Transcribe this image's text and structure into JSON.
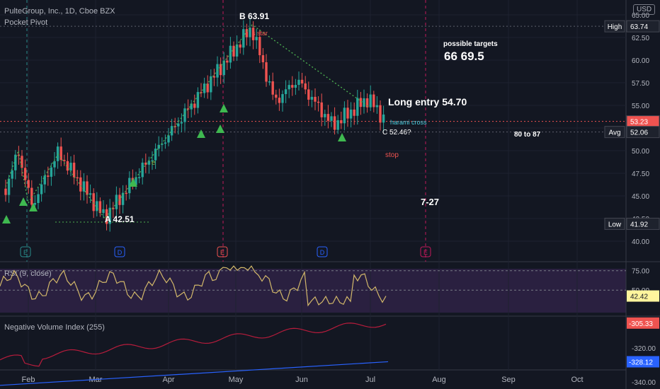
{
  "header": {
    "symbol_line": "PulteGroup, Inc., 1D, Cboe BZX",
    "indicator": "Pocket Pivot",
    "currency": "USD"
  },
  "price_axis": {
    "ticks": [
      "65.00",
      "62.50",
      "60.00",
      "57.50",
      "55.00",
      "52.50",
      "50.00",
      "47.50",
      "45.00",
      "42.50",
      "40.00"
    ],
    "tags": [
      {
        "label": "High",
        "value": "63.74",
        "color": "#1e222d"
      },
      {
        "label": "",
        "value": "53.23",
        "color": "#ef5350"
      },
      {
        "label": "Avg",
        "value": "52.06",
        "color": "#1e222d"
      },
      {
        "label": "Low",
        "value": "41.92",
        "color": "#1e222d"
      }
    ]
  },
  "time_axis": [
    "Feb",
    "Mar",
    "Apr",
    "May",
    "Jun",
    "Jul",
    "Aug",
    "Sep",
    "Oct"
  ],
  "annotations": {
    "point_b": "B  63.91",
    "point_a": "A 42.51",
    "point_c": "C 52.46?",
    "shooting_star": "s star",
    "targets_title": "possible targets",
    "targets_values": "66   69.5",
    "long_entry": "Long entry 54.70",
    "harami": "harami cross",
    "stop": "stop",
    "range": "80 to 87",
    "date_mark": "7-27",
    "small_e": "e"
  },
  "event_badges": [
    "E",
    "D",
    "E",
    "D",
    "E"
  ],
  "rsi_panel": {
    "title": "RSI (9, close)",
    "ticks": [
      "75.00",
      "50.00"
    ],
    "value": "42.42"
  },
  "nvi_panel": {
    "title": "Negative Volume Index (255)",
    "ticks": [
      "-320.00",
      "-340.00"
    ],
    "value1": "-305.33",
    "value2": "-328.12"
  },
  "colors": {
    "up": "#26a69a",
    "down": "#ef5350",
    "triangle": "#3fb950",
    "wave": "#4caf50",
    "rsi_line": "#d2b86a",
    "nvi_line": "#b71c3c",
    "nvi_ma": "#2962ff"
  },
  "chart_data": {
    "type": "candlestick",
    "x_range": [
      "Jan",
      "Oct"
    ],
    "ylim": [
      38.5,
      66.5
    ],
    "key_levels": {
      "high": 63.74,
      "last": 53.23,
      "avg": 52.06,
      "low": 41.92
    },
    "wave_points": [
      {
        "label": "A",
        "value": 42.51,
        "month": "Mar"
      },
      {
        "label": "B",
        "value": 63.91,
        "month": "May"
      },
      {
        "label": "C",
        "value": 52.46,
        "month": "Jul"
      }
    ],
    "targets": [
      66,
      69.5
    ],
    "long_entry": 54.7,
    "rsi": {
      "period": 9,
      "last": 42.42,
      "levels": [
        75,
        50
      ]
    },
    "nvi": {
      "period": 255,
      "last": -305.33,
      "ma_last": -328.12
    }
  }
}
